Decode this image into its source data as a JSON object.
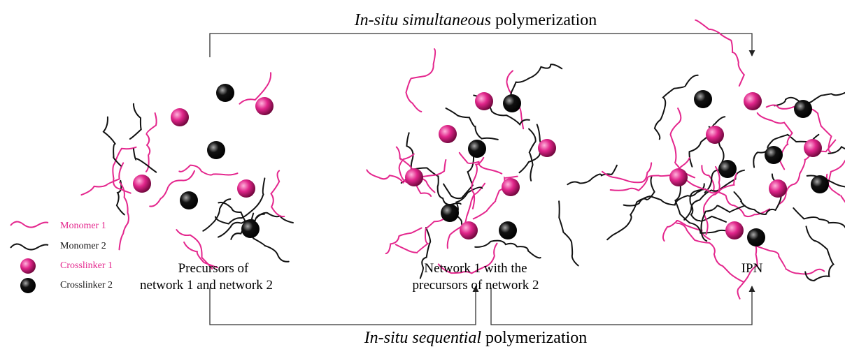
{
  "top_label": {
    "italic": "In-situ simultaneous",
    "rest": "polymerization"
  },
  "bottom_label": {
    "italic": "In-situ sequential",
    "rest": "polymerization"
  },
  "legend": [
    "Monomer 1",
    "Monomer 2",
    "Crosslinker 1",
    "Crosslinker 2"
  ],
  "captions": [
    [
      "Precursors of",
      "network 1 and network 2"
    ],
    [
      "Network 1 with the",
      "precursors of network 2"
    ],
    [
      "IPN"
    ]
  ]
}
